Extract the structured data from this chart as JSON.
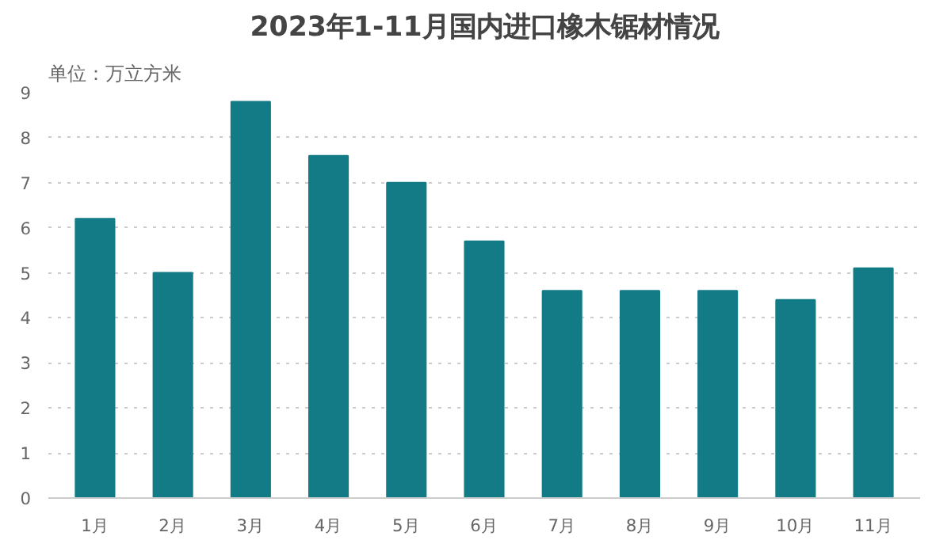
{
  "chart_data": {
    "type": "bar",
    "title": "2023年1-11月国内进口橡木锯材情况",
    "subtitle": "单位：万立方米",
    "categories": [
      "1月",
      "2月",
      "3月",
      "4月",
      "5月",
      "6月",
      "7月",
      "8月",
      "9月",
      "10月",
      "11月"
    ],
    "values": [
      6.2,
      5.0,
      8.8,
      7.6,
      7.0,
      5.7,
      4.6,
      4.6,
      4.6,
      4.4,
      5.1
    ],
    "color": "#137b85",
    "ylim": [
      0,
      9
    ],
    "yticks": [
      0,
      1,
      2,
      3,
      4,
      5,
      6,
      7,
      8,
      9
    ],
    "grid": "y"
  }
}
